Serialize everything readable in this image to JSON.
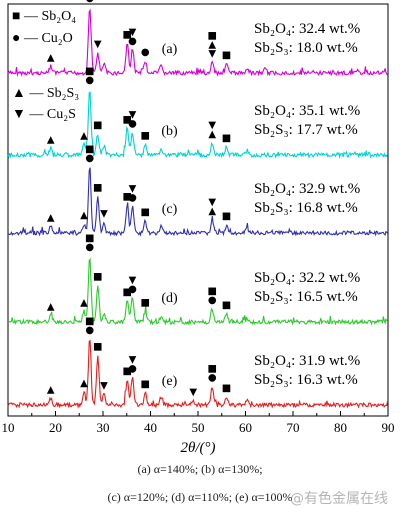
{
  "chart_data": {
    "type": "line",
    "xlabel": "2θ/(°)",
    "xlim": [
      10,
      90
    ],
    "x_ticks": [
      "10",
      "20",
      "30",
      "40",
      "50",
      "60",
      "70",
      "80",
      "90"
    ],
    "legend": [
      {
        "symbol": "■",
        "label": "Sb₂O₄"
      },
      {
        "symbol": "●",
        "label": "Cu₂O"
      },
      {
        "symbol": "▲",
        "label": "Sb₂S₃"
      },
      {
        "symbol": "▼",
        "label": "Cu₂S"
      }
    ],
    "series": [
      {
        "panel": "(a)",
        "color": "#d400d4",
        "sb2o4": "Sb₂O₄: 32.4 wt.%",
        "sb2s3": "Sb₂S₃: 18.0 wt.%",
        "peaks": [
          [
            19,
            0.1
          ],
          [
            27.2,
            1.0
          ],
          [
            28.9,
            0.3
          ],
          [
            30.2,
            0.14
          ],
          [
            35.1,
            0.45
          ],
          [
            36.2,
            0.35
          ],
          [
            38.9,
            0.18
          ],
          [
            42.2,
            0.1
          ],
          [
            53.0,
            0.16
          ],
          [
            56.0,
            0.14
          ],
          [
            60.4,
            0.08
          ],
          [
            64.1,
            0.06
          ]
        ],
        "markers": [
          [
            "▲",
            19
          ],
          [
            "●",
            27.2
          ],
          [
            "■",
            27.2
          ],
          [
            "▼",
            28.9
          ],
          [
            "■",
            35.1
          ],
          [
            "●",
            36.2
          ],
          [
            "▼",
            36.2
          ],
          [
            "●",
            38.9
          ],
          [
            "▼",
            53.0
          ],
          [
            "▲",
            53.0
          ],
          [
            "■",
            53.0
          ],
          [
            "■",
            56.0
          ]
        ]
      },
      {
        "panel": "(b)",
        "color": "#00d2d2",
        "sb2o4": "Sb₂O₄: 35.1 wt.%",
        "sb2s3": "Sb₂S₃: 17.7 wt.%",
        "peaks": [
          [
            19,
            0.1
          ],
          [
            26.0,
            0.16
          ],
          [
            27.2,
            1.0
          ],
          [
            28.9,
            0.32
          ],
          [
            30.2,
            0.14
          ],
          [
            35.1,
            0.4
          ],
          [
            36.2,
            0.34
          ],
          [
            38.9,
            0.16
          ],
          [
            42.2,
            0.08
          ],
          [
            53.0,
            0.18
          ],
          [
            56.0,
            0.12
          ],
          [
            60.4,
            0.07
          ]
        ],
        "markers": [
          [
            "▲",
            19
          ],
          [
            "▲",
            26.0
          ],
          [
            "●",
            27.2
          ],
          [
            "■",
            27.2
          ],
          [
            "■",
            28.9
          ],
          [
            "■",
            35.1
          ],
          [
            "●",
            36.2
          ],
          [
            "▼",
            36.2
          ],
          [
            "■",
            38.9
          ],
          [
            "▲",
            53.0
          ],
          [
            "▼",
            53.0
          ],
          [
            "■",
            56.0
          ]
        ]
      },
      {
        "panel": "(c)",
        "color": "#3030b0",
        "sb2o4": "Sb₂O₄: 32.9 wt.%",
        "sb2s3": "Sb₂S₃: 16.8 wt.%",
        "peaks": [
          [
            19,
            0.1
          ],
          [
            26.0,
            0.14
          ],
          [
            27.2,
            1.0
          ],
          [
            28.9,
            0.55
          ],
          [
            30.2,
            0.16
          ],
          [
            35.1,
            0.42
          ],
          [
            36.2,
            0.4
          ],
          [
            38.9,
            0.18
          ],
          [
            42.2,
            0.1
          ],
          [
            53.0,
            0.2
          ],
          [
            56.0,
            0.12
          ],
          [
            60.4,
            0.07
          ]
        ],
        "markers": [
          [
            "▲",
            19
          ],
          [
            "▲",
            26.0
          ],
          [
            "●",
            27.2
          ],
          [
            "■",
            27.2
          ],
          [
            "■",
            28.9
          ],
          [
            "▼",
            30.2
          ],
          [
            "■",
            35.1
          ],
          [
            "●",
            36.2
          ],
          [
            "▼",
            36.2
          ],
          [
            "■",
            38.9
          ],
          [
            "▲",
            53.0
          ],
          [
            "▼",
            53.0
          ],
          [
            "■",
            56.0
          ]
        ]
      },
      {
        "panel": "(d)",
        "color": "#30c830",
        "sb2o4": "Sb₂O₄: 32.2 wt.%",
        "sb2s3": "Sb₂S₃: 16.5 wt.%",
        "peaks": [
          [
            19,
            0.1
          ],
          [
            26.0,
            0.16
          ],
          [
            27.2,
            1.0
          ],
          [
            28.9,
            0.55
          ],
          [
            30.2,
            0.14
          ],
          [
            35.1,
            0.32
          ],
          [
            36.2,
            0.36
          ],
          [
            38.9,
            0.16
          ],
          [
            42.2,
            0.08
          ],
          [
            53.0,
            0.2
          ],
          [
            56.0,
            0.12
          ],
          [
            60.4,
            0.06
          ]
        ],
        "markers": [
          [
            "▲",
            19
          ],
          [
            "▲",
            26.0
          ],
          [
            "●",
            27.2
          ],
          [
            "■",
            27.2
          ],
          [
            "■",
            28.9
          ],
          [
            "■",
            35.1
          ],
          [
            "●",
            36.2
          ],
          [
            "▼",
            36.2
          ],
          [
            "■",
            38.9
          ],
          [
            "●",
            53.0
          ],
          [
            "■",
            53.0
          ],
          [
            "■",
            56.0
          ]
        ]
      },
      {
        "panel": "(e)",
        "color": "#e02020",
        "sb2o4": "Sb₂O₄: 31.9 wt.%",
        "sb2s3": "Sb₂S₃: 16.3 wt.%",
        "peaks": [
          [
            19,
            0.1
          ],
          [
            26.0,
            0.2
          ],
          [
            27.2,
            1.0
          ],
          [
            28.9,
            0.75
          ],
          [
            30.2,
            0.16
          ],
          [
            35.1,
            0.38
          ],
          [
            36.2,
            0.42
          ],
          [
            38.9,
            0.18
          ],
          [
            42.2,
            0.1
          ],
          [
            49.0,
            0.06
          ],
          [
            53.0,
            0.28
          ],
          [
            56.0,
            0.12
          ],
          [
            60.4,
            0.07
          ]
        ],
        "markers": [
          [
            "▲",
            19
          ],
          [
            "▲",
            26.0
          ],
          [
            "●",
            27.2
          ],
          [
            "■",
            27.2
          ],
          [
            "■",
            28.9
          ],
          [
            "▼",
            30.2
          ],
          [
            "■",
            35.1
          ],
          [
            "●",
            36.2
          ],
          [
            "▼",
            36.2
          ],
          [
            "■",
            38.9
          ],
          [
            "▼",
            49.0
          ],
          [
            "●",
            53.0
          ],
          [
            "■",
            53.0
          ],
          [
            "■",
            56.0
          ]
        ]
      }
    ]
  },
  "captions": {
    "line1": "(a)  α=140%;  (b)  α=130%;",
    "line2": "(c) α=120%; (d) α=110%; (e) α=100%"
  },
  "watermark": "@有色金属在线"
}
